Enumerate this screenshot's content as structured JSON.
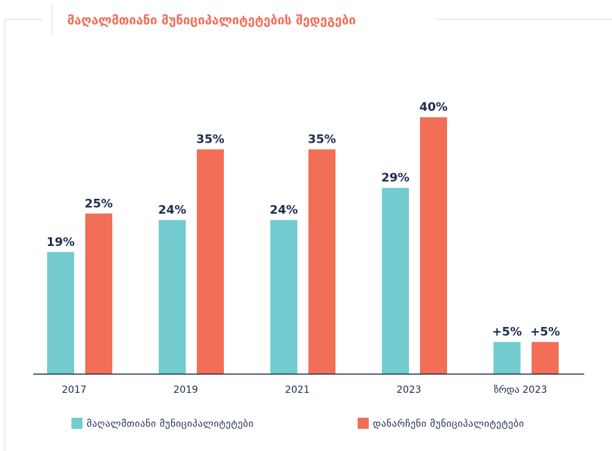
{
  "chart_data": {
    "type": "bar",
    "title": "მაღალმთიანი მუნიციპალიტეტების შედეგები",
    "categories": [
      "2017",
      "2019",
      "2021",
      "2023",
      "ზრდა 2023"
    ],
    "series": [
      {
        "name": "მაღალმთიანი მუნიციპალიტეტები",
        "color": "#74cbcf",
        "values": [
          19,
          24,
          24,
          29,
          5
        ],
        "value_labels": [
          "19%",
          "24%",
          "24%",
          "29%",
          "+5%"
        ]
      },
      {
        "name": "დანარჩენი მუნიციპალიტეტები",
        "color": "#f26e57",
        "values": [
          25,
          35,
          35,
          40,
          5
        ],
        "value_labels": [
          "25%",
          "35%",
          "35%",
          "40%",
          "+5%"
        ]
      }
    ]
  }
}
